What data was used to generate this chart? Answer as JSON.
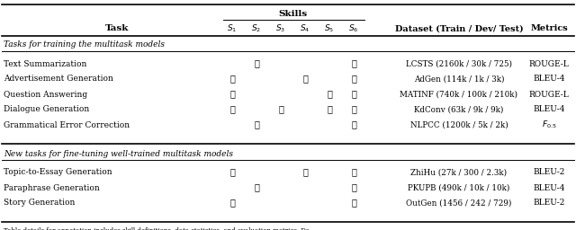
{
  "title": "Skills",
  "section1_label": "Tasks for training the multitask models",
  "section2_label": "New tasks for fine-tuning well-trained multitask models",
  "rows_section1": [
    {
      "task": "Text Summarization",
      "skills": [
        0,
        1,
        0,
        0,
        0,
        1
      ],
      "dataset": "LCSTS (2160k / 30k / 725)",
      "metric": "ROUGE-L"
    },
    {
      "task": "Advertisement Generation",
      "skills": [
        1,
        0,
        0,
        1,
        0,
        1
      ],
      "dataset": "AdGen (114k / 1k / 3k)",
      "metric": "BLEU-4"
    },
    {
      "task": "Question Answering",
      "skills": [
        1,
        0,
        0,
        0,
        1,
        1
      ],
      "dataset": "MATINF (740k / 100k / 210k)",
      "metric": "ROUGE-L"
    },
    {
      "task": "Dialogue Generation",
      "skills": [
        1,
        0,
        1,
        0,
        1,
        1
      ],
      "dataset": "KdConv (63k / 9k / 9k)",
      "metric": "BLEU-4"
    },
    {
      "task": "Grammatical Error Correction",
      "skills": [
        0,
        1,
        0,
        0,
        0,
        1
      ],
      "dataset": "NLPCC (1200k / 5k / 2k)",
      "metric": "F_0.5"
    }
  ],
  "rows_section2": [
    {
      "task": "Topic-to-Essay Generation",
      "skills": [
        1,
        0,
        0,
        1,
        0,
        1
      ],
      "dataset": "ZhiHu (27k / 300 / 2.3k)",
      "metric": "BLEU-2"
    },
    {
      "task": "Paraphrase Generation",
      "skills": [
        0,
        1,
        0,
        0,
        0,
        1
      ],
      "dataset": "PKUPB (490k / 10k / 10k)",
      "metric": "BLEU-4"
    },
    {
      "task": "Story Generation",
      "skills": [
        1,
        0,
        0,
        0,
        0,
        1
      ],
      "dataset": "OutGen (1456 / 242 / 729)",
      "metric": "BLEU-2"
    }
  ],
  "footer": "Table details for annotation includes skill definitions, data statistics, and evaluation metrics. Da..."
}
